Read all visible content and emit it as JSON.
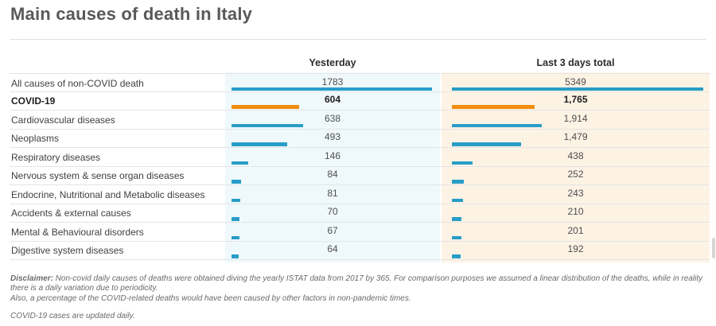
{
  "title": "Main causes of death in Italy",
  "columns": {
    "yesterday": "Yesterday",
    "last3": "Last 3 days total"
  },
  "chart_data": {
    "type": "bar",
    "orientation": "horizontal",
    "title": "Main causes of death in Italy",
    "categories": [
      "All causes of non-COVID death",
      "COVID-19",
      "Cardiovascular diseases",
      "Neoplasms",
      "Respiratory diseases",
      "Nervous system & sense organ diseases",
      "Endocrine, Nutritional and Metabolic diseases",
      "Accidents & external causes",
      "Mental & Behavioural disorders",
      "Digestive system diseases"
    ],
    "series": [
      {
        "name": "Yesterday",
        "values": [
          1783,
          604,
          638,
          493,
          146,
          84,
          81,
          70,
          67,
          64
        ],
        "labels": [
          "1783",
          "604",
          "638",
          "493",
          "146",
          "84",
          "81",
          "70",
          "67",
          "64"
        ]
      },
      {
        "name": "Last 3 days total",
        "values": [
          5349,
          1765,
          1914,
          1479,
          438,
          252,
          243,
          210,
          201,
          192
        ],
        "labels": [
          "5349",
          "1,765",
          "1,914",
          "1,479",
          "438",
          "252",
          "243",
          "210",
          "201",
          "192"
        ]
      }
    ],
    "highlight_index": 1,
    "colors": {
      "bar_default": "#289dc7",
      "bar_highlight": "#f28e0e",
      "column_yesterday_bg": "#eff9fc",
      "column_last3_bg": "#fdf3e5"
    },
    "legend_position": "none",
    "grid": "row-separators"
  },
  "footer": {
    "disclaimer_label": "Disclaimer:",
    "disclaimer_line1": "Non-covid daily causes of deaths were obtained diving the yearly ISTAT data from 2017 by 365. For comparison purposes we assumed a linear distribution of the deaths, while in reality",
    "disclaimer_line2": "there is a daily variation due to periodicity.",
    "disclaimer_line3": "Also, a percentage of the COVID-related deaths would have been caused by other factors in non-pandemic times.",
    "updated_note": "COVID-19 cases are updated daily."
  }
}
